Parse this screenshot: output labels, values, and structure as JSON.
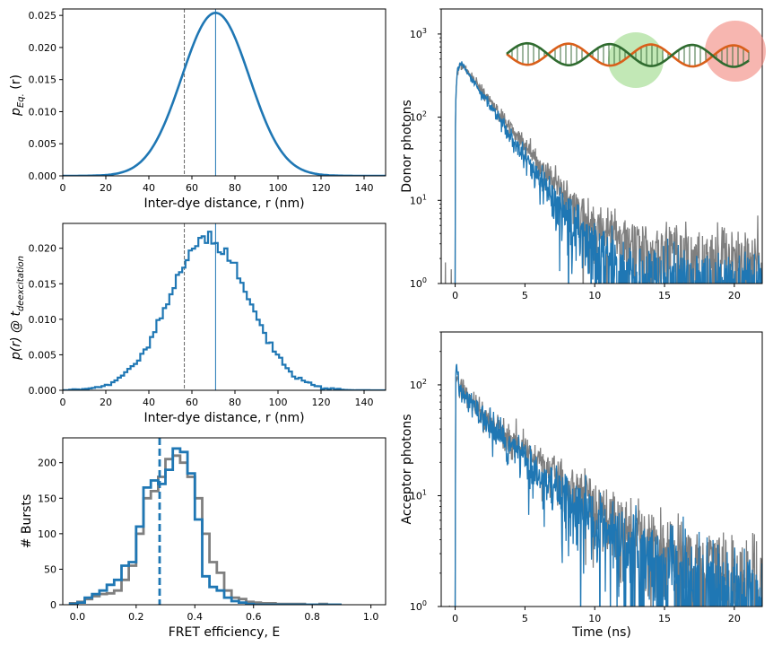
{
  "colors": {
    "blue": "#1f77b4",
    "gray": "#7f7f7f",
    "axis": "#000000",
    "green": "#8fd67a",
    "red": "#f2857b",
    "dna_a": "#d95f1a",
    "dna_b": "#2f6b2f"
  },
  "chart_data": [
    {
      "id": "p1",
      "type": "line",
      "xlabel": "Inter-dye distance, r (nm)",
      "ylabel_main": "p",
      "ylabel_sub": "Eq.",
      "ylabel_arg": " (r)",
      "xlim": [
        0,
        150
      ],
      "ylim": [
        0,
        0.026
      ],
      "xticks": [
        0,
        20,
        40,
        60,
        80,
        100,
        120,
        140
      ],
      "xtick_labels": [
        "0",
        "20",
        "40",
        "60",
        "80",
        "100",
        "120",
        "140"
      ],
      "yticks": [
        0,
        0.005,
        0.01,
        0.015,
        0.02,
        0.025
      ],
      "ytick_labels": [
        "0.000",
        "0.005",
        "0.010",
        "0.015",
        "0.020",
        "0.025"
      ],
      "series": [
        {
          "name": "Gaussian",
          "shape": "gaussian",
          "mean": 71,
          "sigma": 15.7,
          "peak": 0.0254
        }
      ],
      "vlines": [
        {
          "x": 71,
          "style": "solid"
        },
        {
          "x": 56.5,
          "style": "dashed"
        }
      ]
    },
    {
      "id": "p2",
      "type": "step",
      "xlabel": "Inter-dye distance, r (nm)",
      "ylabel_main": "p(r) @ t",
      "ylabel_sub": "deexcitation",
      "xlim": [
        0,
        150
      ],
      "ylim": [
        0,
        0.0235
      ],
      "xticks": [
        0,
        20,
        40,
        60,
        80,
        100,
        120,
        140
      ],
      "xtick_labels": [
        "0",
        "20",
        "40",
        "60",
        "80",
        "100",
        "120",
        "140"
      ],
      "yticks": [
        0,
        0.005,
        0.01,
        0.015,
        0.02
      ],
      "ytick_labels": [
        "0.000",
        "0.005",
        "0.010",
        "0.015",
        "0.020"
      ],
      "series": [
        {
          "name": "Histogram",
          "shape": "gaussian",
          "mean": 68,
          "sigma": 18.5,
          "peak": 0.0215,
          "bin": 1.5,
          "noise": 0.0006
        }
      ],
      "vlines": [
        {
          "x": 71,
          "style": "solid"
        },
        {
          "x": 56.5,
          "style": "dashed"
        }
      ]
    },
    {
      "id": "p3",
      "type": "step",
      "xlabel": "FRET efficiency, E",
      "ylabel": "# Bursts",
      "xlim": [
        -0.05,
        1.05
      ],
      "ylim": [
        0,
        235
      ],
      "xticks": [
        0,
        0.2,
        0.4,
        0.6,
        0.8,
        1.0
      ],
      "xtick_labels": [
        "0.0",
        "0.2",
        "0.4",
        "0.6",
        "0.8",
        "1.0"
      ],
      "yticks": [
        0,
        50,
        100,
        150,
        200
      ],
      "ytick_labels": [
        "0",
        "50",
        "100",
        "150",
        "200"
      ],
      "bin_edges": [
        -0.025,
        0,
        0.025,
        0.05,
        0.075,
        0.1,
        0.125,
        0.15,
        0.175,
        0.2,
        0.225,
        0.25,
        0.275,
        0.3,
        0.325,
        0.35,
        0.375,
        0.4,
        0.425,
        0.45,
        0.475,
        0.5,
        0.525,
        0.55,
        0.575,
        0.6,
        0.625,
        0.65,
        0.675,
        0.7,
        0.725,
        0.75,
        0.775,
        0.8,
        0.825,
        0.85,
        0.875,
        0.9
      ],
      "series": [
        {
          "name": "gray",
          "color_key": "gray",
          "values": [
            2,
            4,
            8,
            12,
            15,
            16,
            20,
            35,
            55,
            100,
            150,
            160,
            180,
            205,
            210,
            200,
            180,
            150,
            100,
            60,
            45,
            20,
            10,
            8,
            4,
            3,
            2,
            2,
            1,
            1,
            1,
            1,
            0,
            0,
            1,
            0,
            0
          ]
        },
        {
          "name": "blue",
          "color_key": "blue",
          "values": [
            1,
            3,
            10,
            15,
            20,
            28,
            35,
            55,
            60,
            110,
            165,
            175,
            170,
            190,
            220,
            215,
            185,
            120,
            40,
            25,
            20,
            10,
            5,
            3,
            1,
            0,
            0,
            0,
            0,
            0,
            0,
            0,
            0,
            0,
            0,
            0,
            0
          ]
        }
      ],
      "vlines": [
        {
          "x": 0.28,
          "style": "thickdash"
        }
      ]
    },
    {
      "id": "p4",
      "type": "decay",
      "ylabel": "Donor photons",
      "xlim": [
        -1,
        22
      ],
      "ylim": [
        1,
        2000
      ],
      "yscale": "log",
      "xticks": [
        0,
        5,
        10,
        15,
        20
      ],
      "xtick_labels": [
        "0",
        "5",
        "10",
        "15",
        "20"
      ],
      "yticks": [
        1,
        10,
        100,
        1000
      ],
      "ytick_labels": [
        {
          "base": "10",
          "exp": "0"
        },
        {
          "base": "10",
          "exp": "1"
        },
        {
          "base": "10",
          "exp": "2"
        },
        {
          "base": "10",
          "exp": "3"
        }
      ],
      "series": [
        {
          "name": "gray",
          "color_key": "gray",
          "amplitude": 560,
          "tau": 1.95,
          "background": 1.7,
          "rise": 0.15,
          "tmax": 22,
          "seed": 7
        },
        {
          "name": "blue",
          "color_key": "blue",
          "amplitude": 570,
          "tau": 1.75,
          "background": 0.7,
          "rise": 0.15,
          "tmax": 22,
          "seed": 19
        }
      ]
    },
    {
      "id": "p5",
      "type": "decay",
      "xlabel": "Time (ns)",
      "ylabel": "Acceptor photons",
      "xlim": [
        -1,
        22
      ],
      "ylim": [
        1,
        300
      ],
      "yscale": "log",
      "xticks": [
        0,
        5,
        10,
        15,
        20
      ],
      "xtick_labels": [
        "0",
        "5",
        "10",
        "15",
        "20"
      ],
      "yticks": [
        1,
        10,
        100
      ],
      "ytick_labels": [
        {
          "base": "10",
          "exp": "0"
        },
        {
          "base": "10",
          "exp": "1"
        },
        {
          "base": "10",
          "exp": "2"
        }
      ],
      "series": [
        {
          "name": "gray",
          "color_key": "gray",
          "amplitude": 85,
          "tau": 3.9,
          "background": 1.2,
          "rise": 0.1,
          "spike": 120,
          "hump": true,
          "tmax": 22,
          "seed": 3
        },
        {
          "name": "blue",
          "color_key": "blue",
          "amplitude": 80,
          "tau": 3.6,
          "background": 0.8,
          "rise": 0.1,
          "spike": 130,
          "hump": true,
          "tmax": 22,
          "seed": 11
        }
      ]
    }
  ]
}
